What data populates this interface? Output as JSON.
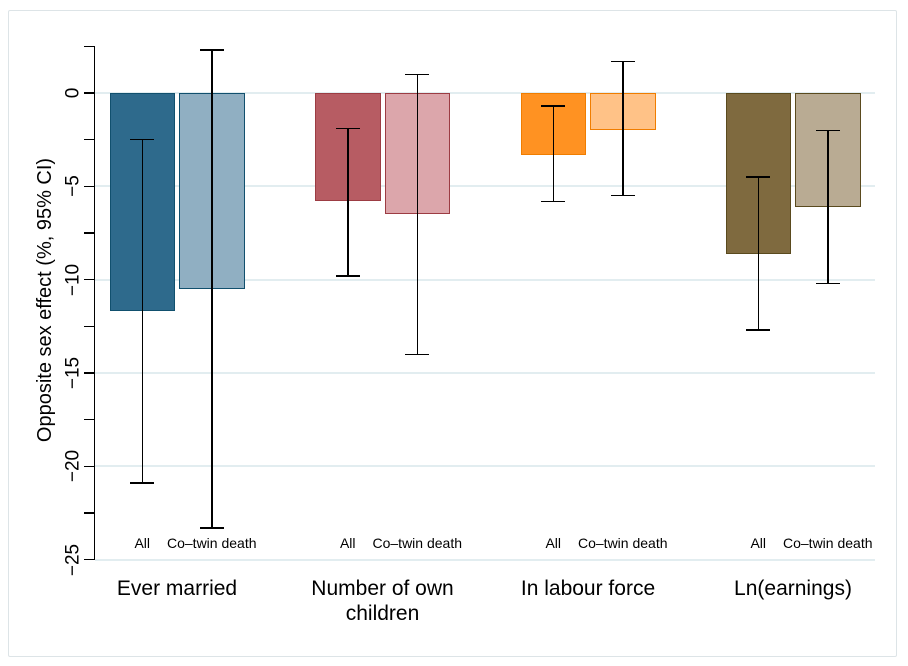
{
  "chart_data": {
    "type": "bar",
    "title": "",
    "xlabel": "",
    "ylabel": "Opposite sex effect (%, 95% CI)",
    "ylim": [
      -25,
      2.5
    ],
    "grid": "horizontal-major-only",
    "legend_position": "none",
    "yticks_major": [
      0,
      -5,
      -10,
      -15,
      -20,
      -25
    ],
    "ytick_labels": [
      "0",
      "−5",
      "−10",
      "−15",
      "−20",
      "−25"
    ],
    "yticks_minor": [
      2.5,
      -2.5,
      -7.5,
      -12.5,
      -17.5,
      -22.5
    ],
    "series_names": [
      "All",
      "Co–twin death"
    ],
    "groups": [
      {
        "label": "Ever married",
        "bars": [
          {
            "series": "All",
            "value": -11.7,
            "ci_low": -20.9,
            "ci_high": -2.5
          },
          {
            "series": "Co–twin death",
            "value": -10.5,
            "ci_low": -23.3,
            "ci_high": 2.3
          }
        ]
      },
      {
        "label": "Number of own children",
        "bars": [
          {
            "series": "All",
            "value": -5.8,
            "ci_low": -9.8,
            "ci_high": -1.9
          },
          {
            "series": "Co–twin death",
            "value": -6.5,
            "ci_low": -14.0,
            "ci_high": 1.0
          }
        ]
      },
      {
        "label": "In labour force",
        "bars": [
          {
            "series": "All",
            "value": -3.3,
            "ci_low": -5.8,
            "ci_high": -0.7
          },
          {
            "series": "Co–twin death",
            "value": -2.0,
            "ci_low": -5.5,
            "ci_high": 1.7
          }
        ]
      },
      {
        "label": "Ln(earnings)",
        "bars": [
          {
            "series": "All",
            "value": -8.6,
            "ci_low": -12.7,
            "ci_high": -4.5
          },
          {
            "series": "Co–twin death",
            "value": -6.1,
            "ci_low": -10.2,
            "ci_high": -2.0
          }
        ]
      }
    ],
    "colors": {
      "group_fills_all": [
        "#2E6A8C",
        "#B75C63",
        "#FF9222",
        "#7F6A3F"
      ],
      "group_fills_cotwin": [
        "#90AFC2",
        "#DCA6AB",
        "#FFC287",
        "#B9AB93"
      ],
      "group_outlines": [
        "#11506E",
        "#9C3C43",
        "#F07D00",
        "#5A4A1E"
      ],
      "gridline": "#E2EDF0",
      "axis": "#000000",
      "error_bar": "#000000",
      "figure_border": "#DDE4E7",
      "background": "#FFFFFF"
    }
  }
}
